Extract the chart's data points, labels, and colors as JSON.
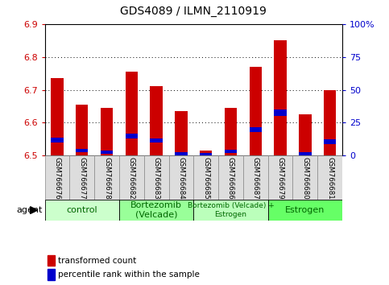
{
  "title": "GDS4089 / ILMN_2110919",
  "samples": [
    "GSM766676",
    "GSM766677",
    "GSM766678",
    "GSM766682",
    "GSM766683",
    "GSM766684",
    "GSM766685",
    "GSM766686",
    "GSM766687",
    "GSM766679",
    "GSM766680",
    "GSM766681"
  ],
  "red_values": [
    6.735,
    6.655,
    6.645,
    6.755,
    6.71,
    6.635,
    6.515,
    6.645,
    6.77,
    6.85,
    6.625,
    6.7
  ],
  "blue_bottom": [
    6.54,
    6.51,
    6.505,
    6.552,
    6.54,
    6.5,
    6.5,
    6.508,
    6.57,
    6.62,
    6.5,
    6.535
  ],
  "blue_height": [
    0.015,
    0.01,
    0.01,
    0.015,
    0.012,
    0.01,
    0.008,
    0.01,
    0.015,
    0.02,
    0.01,
    0.015
  ],
  "ymin": 6.5,
  "ymax": 6.9,
  "y_left_ticks": [
    6.5,
    6.6,
    6.7,
    6.8,
    6.9
  ],
  "y_right_ticks": [
    0,
    25,
    50,
    75,
    100
  ],
  "y_right_labels": [
    "0",
    "25",
    "50",
    "75",
    "100%"
  ],
  "groups": [
    {
      "label": "control",
      "start": 0,
      "end": 3,
      "color": "#ccffcc",
      "fontsize": 8
    },
    {
      "label": "Bortezomib\n(Velcade)",
      "start": 3,
      "end": 6,
      "color": "#99ff99",
      "fontsize": 8
    },
    {
      "label": "Bortezomib (Velcade) +\nEstrogen",
      "start": 6,
      "end": 9,
      "color": "#bbffbb",
      "fontsize": 6.5
    },
    {
      "label": "Estrogen",
      "start": 9,
      "end": 12,
      "color": "#66ff66",
      "fontsize": 8
    }
  ],
  "bar_width": 0.5,
  "red_color": "#cc0000",
  "blue_color": "#0000cc",
  "baseline": 6.5,
  "legend_red": "transformed count",
  "legend_blue": "percentile rank within the sample",
  "tick_color_left": "#cc0000",
  "tick_color_right": "#0000cc",
  "label_box_color": "#dddddd",
  "label_box_edge": "#888888"
}
